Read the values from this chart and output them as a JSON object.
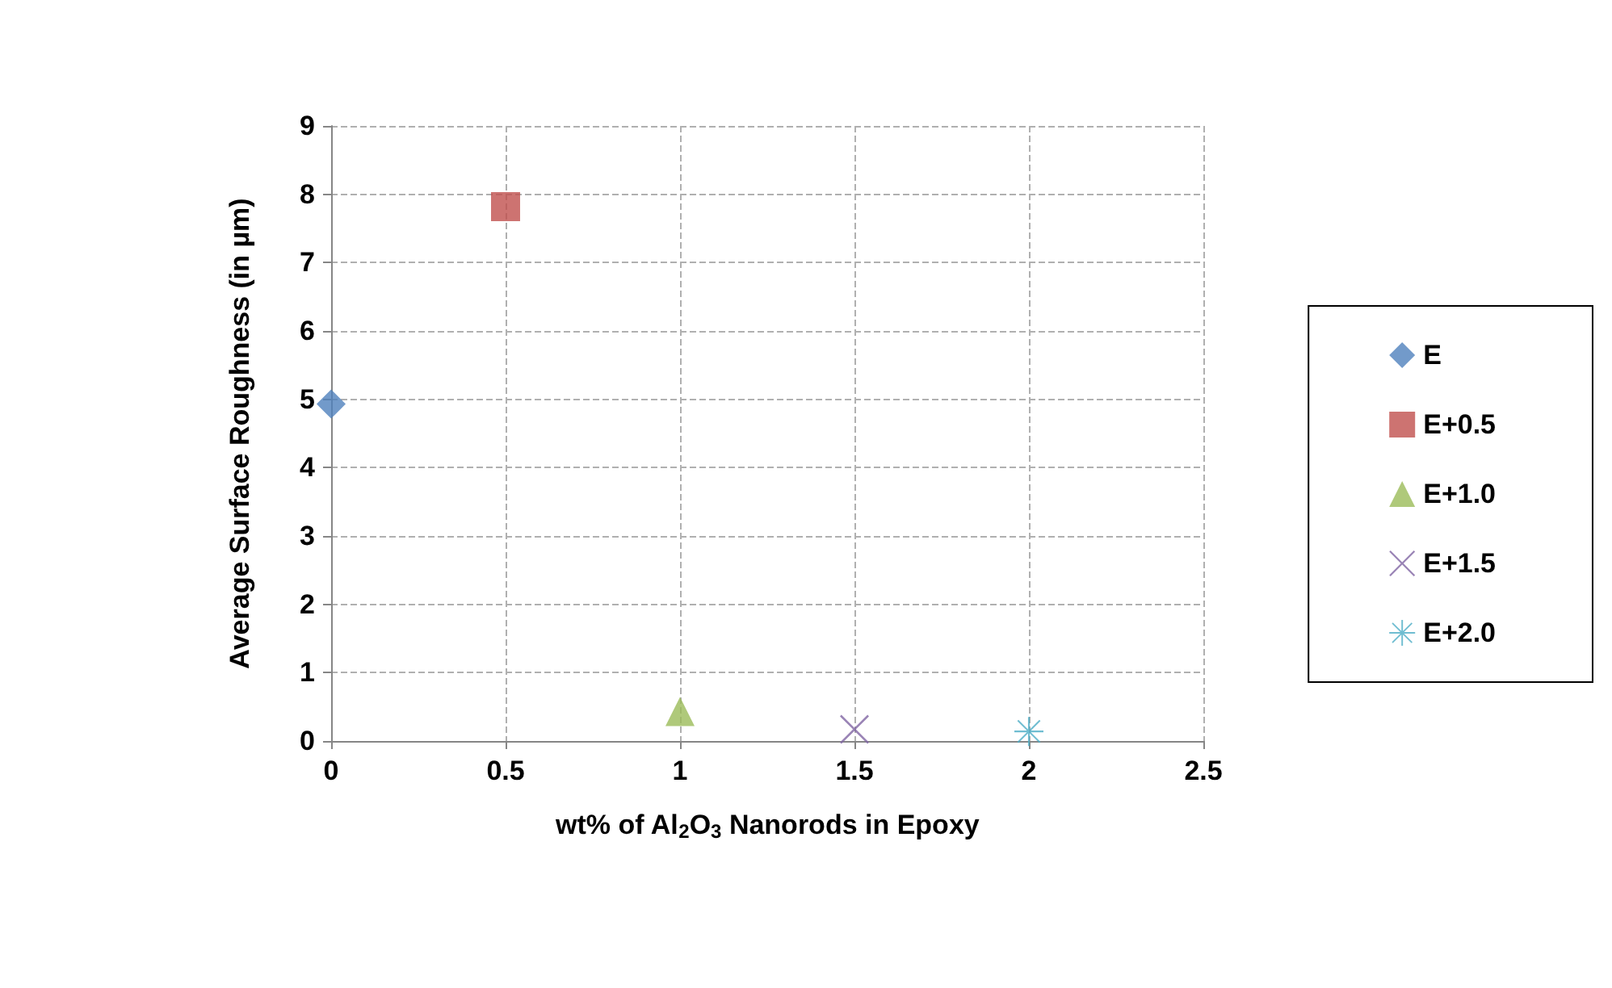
{
  "chart_data": {
    "type": "scatter",
    "xlabel": "wt% of Al$_{2}$O$_{3}$ Nanorods in Epoxy",
    "ylabel": "Average Surface Roughness (in µm)",
    "xlim": [
      0,
      2.5
    ],
    "xticks": [
      0,
      0.5,
      1,
      1.5,
      2,
      2.5
    ],
    "ylim": [
      0,
      9
    ],
    "yticks": [
      0,
      1,
      2,
      3,
      4,
      5,
      6,
      7,
      8,
      9
    ],
    "grid": true,
    "legend": "right",
    "series": [
      {
        "name": "E",
        "color": "#4f81bd",
        "marker": "diamond",
        "x": [
          0
        ],
        "values": [
          4.93
        ]
      },
      {
        "name": "E+0.5",
        "color": "#c0504d",
        "marker": "square",
        "x": [
          0.5
        ],
        "values": [
          7.82
        ]
      },
      {
        "name": "E+1.0",
        "color": "#9bbb59",
        "marker": "triangle",
        "x": [
          1
        ],
        "values": [
          0.43
        ]
      },
      {
        "name": "E+1.5",
        "color": "#8064a2",
        "marker": "cross",
        "x": [
          1.5
        ],
        "values": [
          0.17
        ]
      },
      {
        "name": "E+2.0",
        "color": "#4bacc6",
        "marker": "star",
        "x": [
          2
        ],
        "values": [
          0.14
        ]
      }
    ]
  }
}
